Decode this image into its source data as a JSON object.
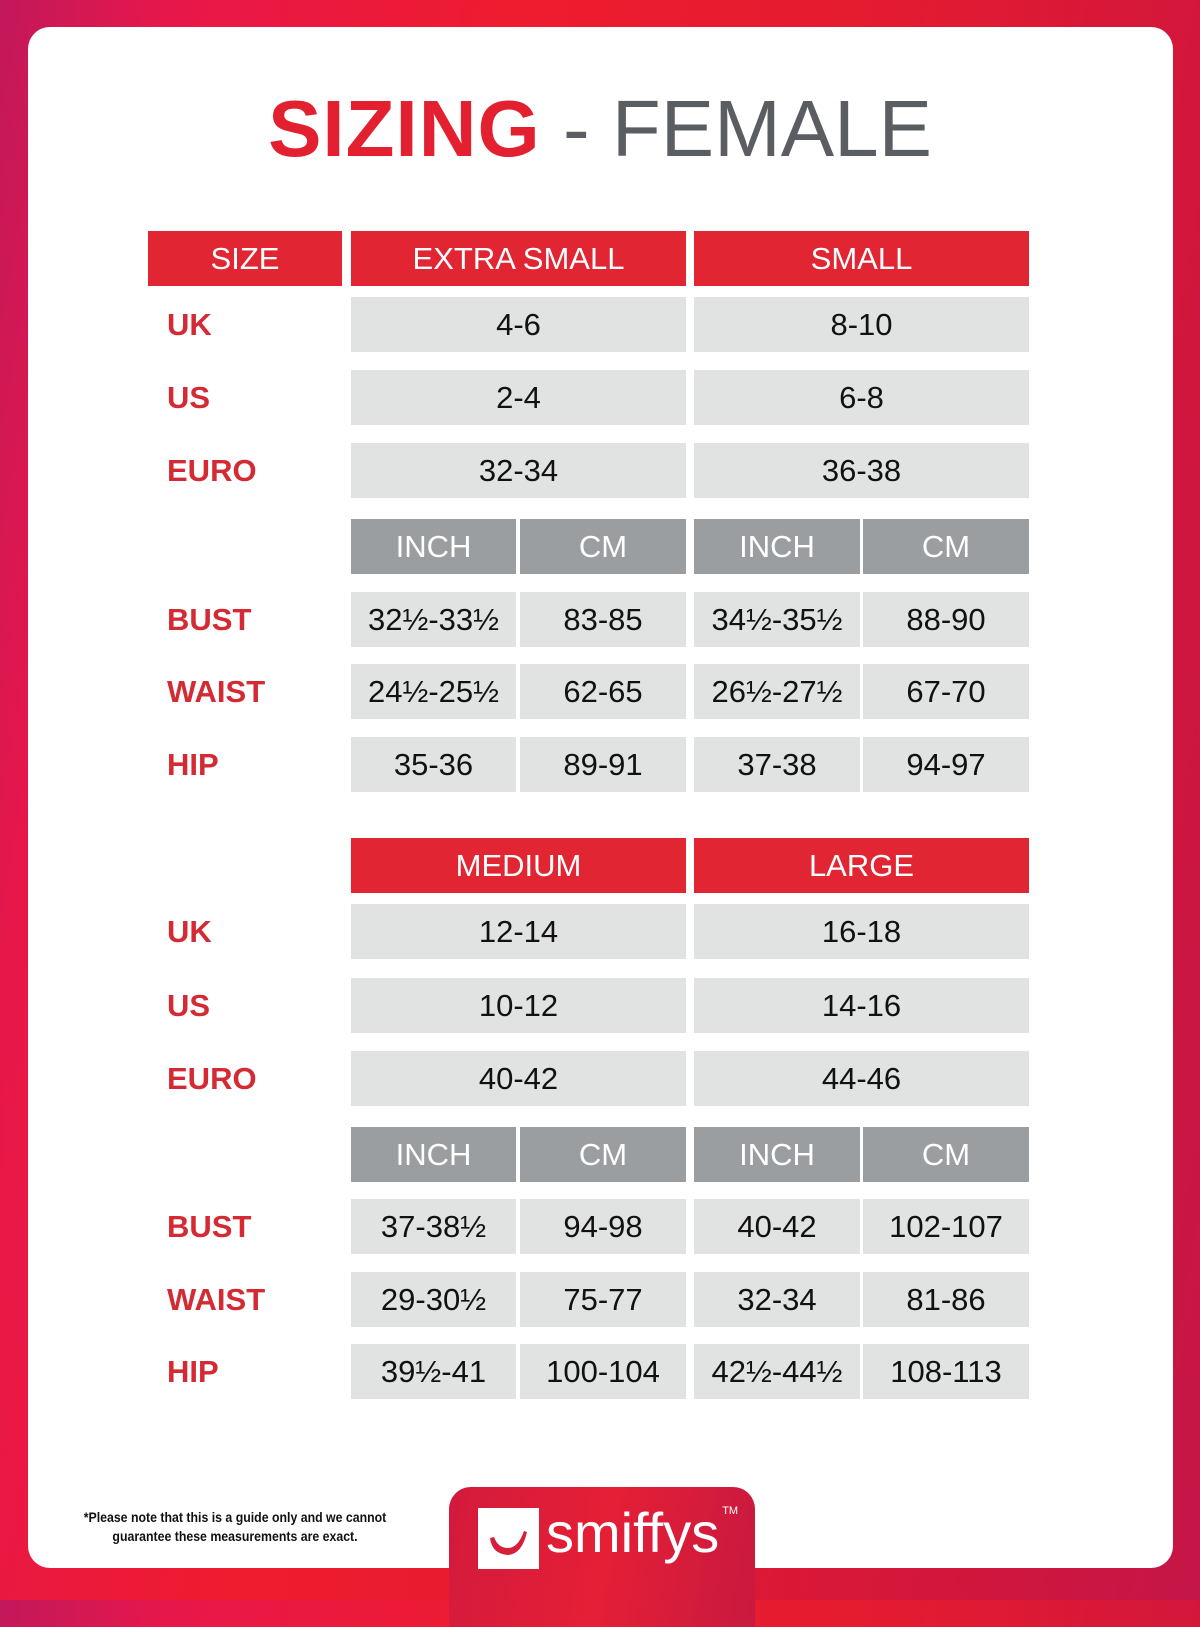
{
  "title": {
    "main": "SIZING",
    "rest": " - FEMALE"
  },
  "colors": {
    "accent": "#e12532",
    "label": "#d42a33",
    "subheader": "#9b9ea1",
    "cell": "#e1e2e2"
  },
  "size_header": "SIZE",
  "unit_labels": [
    "INCH",
    "CM"
  ],
  "blocks": [
    {
      "sizes": [
        "EXTRA SMALL",
        "SMALL"
      ],
      "region_rows": [
        {
          "label": "UK",
          "values": [
            "4-6",
            "8-10"
          ]
        },
        {
          "label": "US",
          "values": [
            "2-4",
            "6-8"
          ]
        },
        {
          "label": "EURO",
          "values": [
            "32-34",
            "36-38"
          ]
        }
      ],
      "measure_rows": [
        {
          "label": "BUST",
          "values": [
            "32½-33½",
            "83-85",
            "34½-35½",
            "88-90"
          ]
        },
        {
          "label": "WAIST",
          "values": [
            "24½-25½",
            "62-65",
            "26½-27½",
            "67-70"
          ]
        },
        {
          "label": "HIP",
          "values": [
            "35-36",
            "89-91",
            "37-38",
            "94-97"
          ]
        }
      ]
    },
    {
      "sizes": [
        "MEDIUM",
        "LARGE"
      ],
      "region_rows": [
        {
          "label": "UK",
          "values": [
            "12-14",
            "16-18"
          ]
        },
        {
          "label": "US",
          "values": [
            "10-12",
            "14-16"
          ]
        },
        {
          "label": "EURO",
          "values": [
            "40-42",
            "44-46"
          ]
        }
      ],
      "measure_rows": [
        {
          "label": "BUST",
          "values": [
            "37-38½",
            "94-98",
            "40-42",
            "102-107"
          ]
        },
        {
          "label": "WAIST",
          "values": [
            "29-30½",
            "75-77",
            "32-34",
            "81-86"
          ]
        },
        {
          "label": "HIP",
          "values": [
            "39½-41",
            "100-104",
            "42½-44½",
            "108-113"
          ]
        }
      ]
    }
  ],
  "footer": {
    "note_line1": "*Please note that this is a guide only and we cannot",
    "note_line2": "guarantee these measurements are exact.",
    "brand": "smiffys",
    "trademark": "TM"
  }
}
